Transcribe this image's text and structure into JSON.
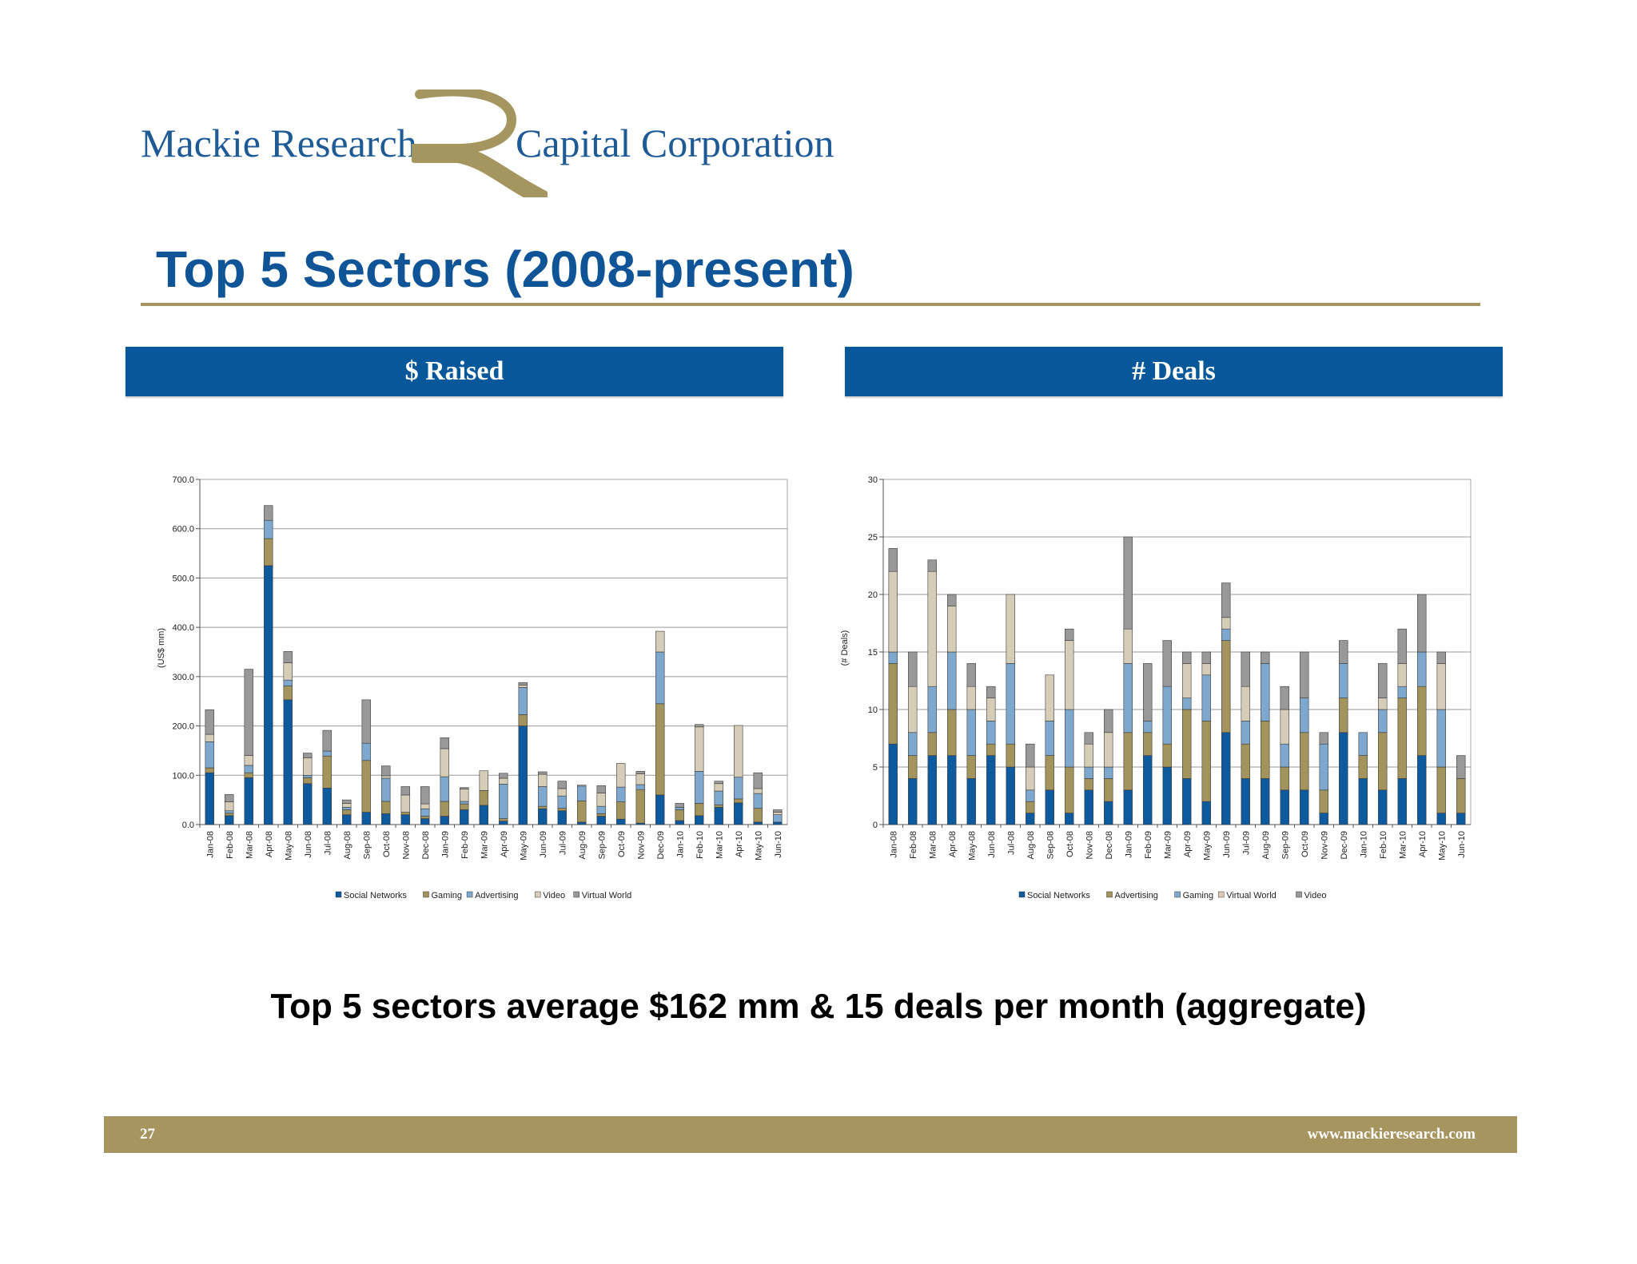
{
  "logo": {
    "left_text": "Mackie Research",
    "right_text": "Capital Corporation",
    "colors": {
      "text": "#1e5a96",
      "mark": "#a59660"
    }
  },
  "title": "Top 5 Sectors (2008-present)",
  "panels": {
    "left_header": "$ Raised",
    "right_header": "# Deals"
  },
  "summary": "Top 5 sectors average $162 mm & 15 deals per month (aggregate)",
  "footer": {
    "page": "27",
    "url": "www.mackieresearch.com"
  },
  "chart_data": [
    {
      "type": "bar",
      "stacked": true,
      "ylabel": "(US$ mm)",
      "ylim": [
        0,
        700
      ],
      "yticks": [
        "0.0",
        "100.0",
        "200.0",
        "300.0",
        "400.0",
        "500.0",
        "600.0",
        "700.0"
      ],
      "grid": true,
      "legend_position": "bottom",
      "categories": [
        "Jan-08",
        "Feb-08",
        "Mar-08",
        "Apr-08",
        "May-08",
        "Jun-08",
        "Jul-08",
        "Aug-08",
        "Sep-08",
        "Oct-08",
        "Nov-08",
        "Dec-08",
        "Jan-09",
        "Feb-09",
        "Mar-09",
        "Apr-09",
        "May-09",
        "Jun-09",
        "Jul-09",
        "Aug-09",
        "Sep-09",
        "Oct-09",
        "Nov-09",
        "Dec-09",
        "Jan-10",
        "Feb-10",
        "Mar-10",
        "Apr-10",
        "May-10",
        "Jun-10"
      ],
      "series": [
        {
          "name": "Social Networks",
          "color": "#0d5a9f",
          "values": [
            105,
            18,
            95,
            525,
            253,
            83,
            74,
            20,
            25,
            22,
            20,
            12,
            17,
            30,
            39,
            7,
            200,
            32,
            28,
            5,
            17,
            11,
            3,
            60,
            8,
            18,
            35,
            44,
            5,
            5
          ]
        },
        {
          "name": "Gaming",
          "color": "#a3935c",
          "values": [
            10,
            5,
            10,
            55,
            28,
            12,
            65,
            10,
            105,
            25,
            5,
            5,
            30,
            12,
            30,
            5,
            23,
            5,
            5,
            43,
            5,
            35,
            68,
            185,
            22,
            25,
            5,
            8,
            28,
            0
          ]
        },
        {
          "name": "Advertising",
          "color": "#7ea8cd",
          "values": [
            53,
            5,
            15,
            37,
            12,
            5,
            10,
            5,
            35,
            47,
            0,
            15,
            50,
            5,
            0,
            70,
            55,
            40,
            25,
            30,
            15,
            30,
            10,
            105,
            5,
            65,
            28,
            44,
            30,
            15
          ]
        },
        {
          "name": "Video",
          "color": "#d6cdb8",
          "values": [
            15,
            18,
            20,
            0,
            35,
            35,
            0,
            8,
            0,
            5,
            35,
            10,
            57,
            25,
            40,
            12,
            5,
            25,
            15,
            2,
            27,
            48,
            22,
            42,
            0,
            90,
            15,
            105,
            10,
            5
          ]
        },
        {
          "name": "Virtual World",
          "color": "#999999",
          "values": [
            50,
            15,
            175,
            30,
            23,
            10,
            42,
            7,
            88,
            20,
            17,
            35,
            22,
            3,
            0,
            10,
            5,
            5,
            15,
            0,
            15,
            0,
            5,
            0,
            8,
            5,
            5,
            0,
            32,
            5
          ]
        }
      ]
    },
    {
      "type": "bar",
      "stacked": true,
      "ylabel": "(# Deals)",
      "ylim": [
        0,
        30
      ],
      "yticks": [
        "0",
        "5",
        "10",
        "15",
        "20",
        "25",
        "30"
      ],
      "grid": true,
      "legend_position": "bottom",
      "categories": [
        "Jan-08",
        "Feb-08",
        "Mar-08",
        "Apr-08",
        "May-08",
        "Jun-08",
        "Jul-08",
        "Aug-08",
        "Sep-08",
        "Oct-08",
        "Nov-08",
        "Dec-08",
        "Jan-09",
        "Feb-09",
        "Mar-09",
        "Apr-09",
        "May-09",
        "Jun-09",
        "Jul-09",
        "Aug-09",
        "Sep-09",
        "Oct-09",
        "Nov-09",
        "Dec-09",
        "Jan-10",
        "Feb-10",
        "Mar-10",
        "Apr-10",
        "May-10",
        "Jun-10"
      ],
      "series": [
        {
          "name": "Social Networks",
          "color": "#0d5a9f",
          "values": [
            7,
            4,
            6,
            6,
            4,
            6,
            5,
            1,
            3,
            1,
            3,
            2,
            3,
            6,
            5,
            4,
            2,
            8,
            4,
            4,
            3,
            3,
            1,
            8,
            4,
            3,
            4,
            6,
            1,
            1
          ]
        },
        {
          "name": "Advertising",
          "color": "#a3935c",
          "values": [
            7,
            2,
            2,
            4,
            2,
            1,
            2,
            1,
            3,
            4,
            1,
            2,
            5,
            2,
            2,
            6,
            7,
            8,
            3,
            5,
            2,
            5,
            2,
            3,
            2,
            5,
            7,
            6,
            4,
            3
          ]
        },
        {
          "name": "Gaming",
          "color": "#7ea8cd",
          "values": [
            1,
            2,
            4,
            5,
            4,
            2,
            7,
            1,
            3,
            5,
            1,
            1,
            6,
            1,
            5,
            1,
            4,
            1,
            2,
            5,
            2,
            3,
            4,
            3,
            2,
            2,
            1,
            3,
            5,
            0
          ]
        },
        {
          "name": "Virtual World",
          "color": "#d6cdb8",
          "values": [
            7,
            4,
            10,
            4,
            2,
            2,
            6,
            2,
            4,
            6,
            2,
            3,
            3,
            0,
            0,
            3,
            1,
            1,
            3,
            0,
            3,
            0,
            0,
            0,
            0,
            1,
            2,
            0,
            4,
            0
          ]
        },
        {
          "name": "Video",
          "color": "#999999",
          "values": [
            2,
            3,
            1,
            1,
            2,
            1,
            0,
            2,
            0,
            1,
            1,
            2,
            8,
            5,
            4,
            1,
            1,
            3,
            3,
            1,
            2,
            4,
            1,
            2,
            0,
            3,
            3,
            5,
            1,
            2
          ]
        }
      ]
    }
  ]
}
